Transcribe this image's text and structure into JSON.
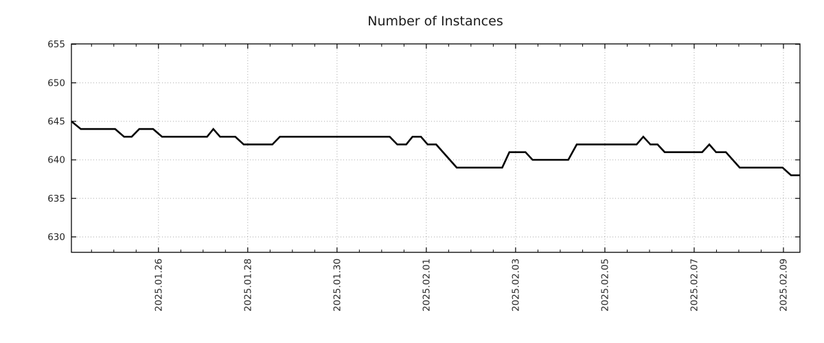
{
  "chart_data": {
    "type": "line",
    "title": "Number of Instances",
    "x_axis": {
      "label": "",
      "unit": "days_since_2025-01-24_00:00",
      "lim": [
        0.05,
        16.37
      ],
      "major_ticks": [
        {
          "t": 2,
          "label": "2025.01.26"
        },
        {
          "t": 4,
          "label": "2025.01.28"
        },
        {
          "t": 6,
          "label": "2025.01.30"
        },
        {
          "t": 8,
          "label": "2025.02.01"
        },
        {
          "t": 10,
          "label": "2025.02.03"
        },
        {
          "t": 12,
          "label": "2025.02.05"
        },
        {
          "t": 14,
          "label": "2025.02.07"
        },
        {
          "t": 16,
          "label": "2025.02.09"
        }
      ],
      "minor_step": 0.5,
      "label_rotation_deg": -90
    },
    "y_axis": {
      "label": "",
      "lim": [
        628,
        655.05
      ],
      "ticks": [
        630,
        635,
        640,
        645,
        650,
        655
      ]
    },
    "grid": {
      "show": true,
      "style": "dotted",
      "color": "#a8a8a8"
    },
    "legend": {
      "show": false
    },
    "series": [
      {
        "name": "instances",
        "color": "#000000",
        "line_width": 2.6,
        "points": [
          [
            0.05,
            645
          ],
          [
            0.26,
            644
          ],
          [
            1.03,
            644
          ],
          [
            1.23,
            643
          ],
          [
            1.4,
            643
          ],
          [
            1.57,
            644
          ],
          [
            1.88,
            644
          ],
          [
            2.08,
            643
          ],
          [
            3.09,
            643
          ],
          [
            3.23,
            644
          ],
          [
            3.38,
            643
          ],
          [
            3.72,
            643
          ],
          [
            3.91,
            642
          ],
          [
            4.55,
            642
          ],
          [
            4.72,
            643
          ],
          [
            7.18,
            643
          ],
          [
            7.35,
            642
          ],
          [
            7.55,
            642
          ],
          [
            7.69,
            643
          ],
          [
            7.88,
            643
          ],
          [
            8.03,
            642
          ],
          [
            8.22,
            642
          ],
          [
            8.68,
            639
          ],
          [
            9.7,
            639
          ],
          [
            9.86,
            641
          ],
          [
            10.22,
            641
          ],
          [
            10.38,
            640
          ],
          [
            11.18,
            640
          ],
          [
            11.37,
            642
          ],
          [
            12.71,
            642
          ],
          [
            12.86,
            643
          ],
          [
            13.02,
            642
          ],
          [
            13.18,
            642
          ],
          [
            13.34,
            641
          ],
          [
            14.18,
            641
          ],
          [
            14.34,
            642
          ],
          [
            14.49,
            641
          ],
          [
            14.71,
            641
          ],
          [
            15.02,
            639
          ],
          [
            15.98,
            639
          ],
          [
            16.17,
            638
          ],
          [
            16.37,
            638
          ]
        ]
      }
    ],
    "style": {
      "background": "#ffffff",
      "border_color": "#000000",
      "text_color": "#262626",
      "title_color": "#1a1a1a"
    }
  }
}
